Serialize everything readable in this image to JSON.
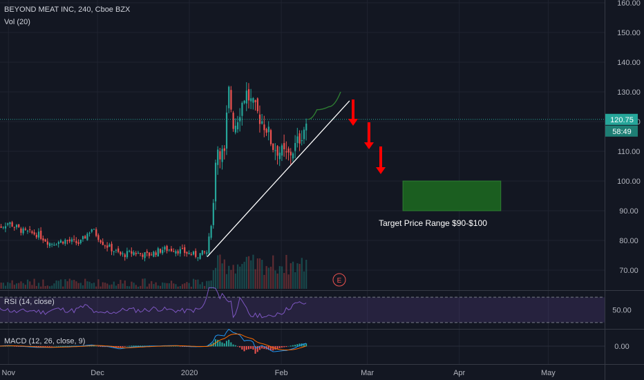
{
  "header": {
    "symbol": "BEYOND MEAT INC, 240, Cboe BZX",
    "volume": "Vol (20)",
    "rsi": "RSI (14, close)",
    "macd": "MACD (12, 26, close, 9)"
  },
  "annotation": {
    "target_label": "Target Price Range $90-$100",
    "event_marker": "E"
  },
  "price_labels": {
    "last_price": "120.75",
    "countdown": "58:49",
    "rsi_value": "50.00",
    "macd_value": "0.00"
  },
  "colors": {
    "background": "#131722",
    "up": "#26a69a",
    "down": "#ef5350",
    "target_box": "#1b5e20",
    "arrow": "#ff0000",
    "rsi_band": "#7e57c2",
    "macd_line": "#2196f3",
    "signal_line": "#ff6d00"
  },
  "chart_data": [
    {
      "type": "candlestick",
      "title": "BEYOND MEAT INC, 240, Cboe BZX",
      "xlabel": "",
      "ylabel": "",
      "x_ticks": [
        "Nov",
        "Dec",
        "2020",
        "Feb",
        "Mar",
        "Apr",
        "May"
      ],
      "y_ticks": [
        70,
        80,
        90,
        100,
        110,
        120,
        130,
        140,
        150,
        160
      ],
      "ylim": [
        65,
        161
      ],
      "grid": true,
      "last_price": 120.75,
      "close_path": [
        [
          "2019-10-28",
          84
        ],
        [
          "2019-11-01",
          86
        ],
        [
          "2019-11-06",
          83
        ],
        [
          "2019-11-11",
          82
        ],
        [
          "2019-11-15",
          79
        ],
        [
          "2019-11-20",
          80
        ],
        [
          "2019-11-25",
          79
        ],
        [
          "2019-11-29",
          84
        ],
        [
          "2019-12-03",
          79
        ],
        [
          "2019-12-09",
          75
        ],
        [
          "2019-12-13",
          76
        ],
        [
          "2019-12-18",
          75
        ],
        [
          "2019-12-23",
          77
        ],
        [
          "2019-12-27",
          77
        ],
        [
          "2020-01-03",
          75
        ],
        [
          "2020-01-07",
          76
        ],
        [
          "2020-01-09",
          91
        ],
        [
          "2020-01-10",
          112
        ],
        [
          "2020-01-13",
          108
        ],
        [
          "2020-01-14",
          132
        ],
        [
          "2020-01-16",
          118
        ],
        [
          "2020-01-20",
          130
        ],
        [
          "2020-01-23",
          124
        ],
        [
          "2020-01-27",
          118
        ],
        [
          "2020-01-29",
          112
        ],
        [
          "2020-02-03",
          108
        ],
        [
          "2020-02-06",
          112
        ],
        [
          "2020-02-10",
          120.75
        ]
      ],
      "trendline": [
        [
          "2020-01-07",
          74.5
        ],
        [
          "2020-02-24",
          127
        ]
      ],
      "projection": [
        [
          "2020-02-10",
          120.75
        ],
        [
          "2020-02-13",
          124
        ],
        [
          "2020-02-17",
          125
        ],
        [
          "2020-02-21",
          130
        ]
      ],
      "target_range": {
        "low": 90,
        "high": 100,
        "from": "2020-03-13",
        "to": "2020-04-15"
      }
    },
    {
      "type": "line",
      "title": "RSI (14, close)",
      "y_ticks": [
        50
      ],
      "band": [
        30,
        70
      ]
    },
    {
      "type": "line",
      "title": "MACD (12, 26, close, 9)",
      "y_ticks": [
        0.0
      ],
      "series": [
        {
          "name": "MACD"
        },
        {
          "name": "Signal"
        }
      ]
    }
  ]
}
